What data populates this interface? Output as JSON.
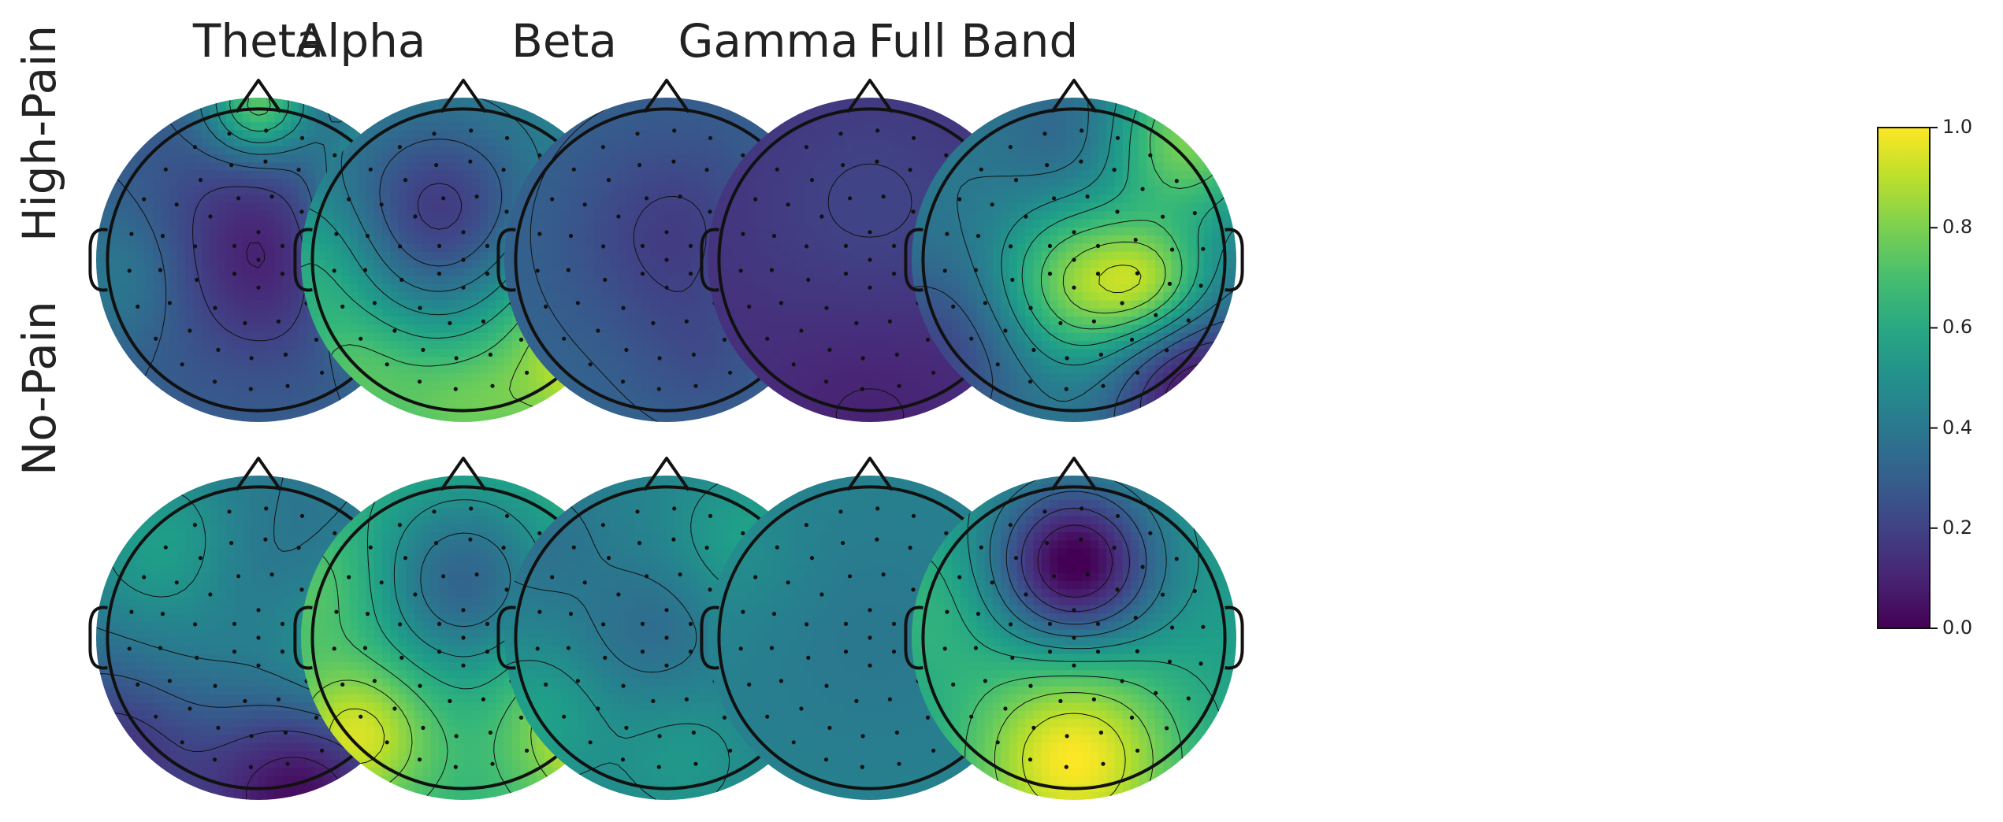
{
  "chart_data": {
    "type": "heatmap",
    "subtype": "eeg-scalp-topomap",
    "columns": [
      "Theta",
      "Alpha",
      "Beta",
      "Gamma",
      "Full Band"
    ],
    "rows": [
      "High-Pain",
      "No-Pain"
    ],
    "colormap": "viridis",
    "colorbar": {
      "range": [
        0.0,
        1.0
      ],
      "ticks": [
        "0.0",
        "0.2",
        "0.4",
        "0.6",
        "0.8",
        "1.0"
      ]
    },
    "maps": [
      [
        {
          "base": 0.3,
          "blobs": [
            [
              0.05,
              -0.05,
              0.45,
              -0.22
            ],
            [
              0.92,
              -0.35,
              0.35,
              0.55
            ],
            [
              0.95,
              0.25,
              0.3,
              0.4
            ],
            [
              0.0,
              -0.95,
              0.22,
              0.45
            ],
            [
              -0.85,
              0.1,
              0.3,
              0.12
            ]
          ]
        },
        {
          "base": 0.45,
          "blobs": [
            [
              -0.15,
              -0.3,
              0.4,
              -0.28
            ],
            [
              0.9,
              0.55,
              0.45,
              0.55
            ],
            [
              -0.7,
              0.7,
              0.35,
              0.25
            ],
            [
              0.0,
              0.95,
              0.35,
              0.25
            ],
            [
              -0.9,
              0.0,
              0.3,
              0.15
            ]
          ]
        },
        {
          "base": 0.32,
          "blobs": [
            [
              0.05,
              -0.15,
              0.45,
              -0.14
            ],
            [
              0.95,
              0.1,
              0.35,
              0.1
            ],
            [
              0.25,
              0.6,
              0.3,
              -0.06
            ]
          ]
        },
        {
          "base": 0.14,
          "blobs": [
            [
              0.0,
              -0.3,
              0.55,
              0.07
            ],
            [
              0.0,
              0.85,
              0.5,
              -0.05
            ]
          ]
        },
        {
          "base": 0.4,
          "blobs": [
            [
              0.05,
              0.15,
              0.35,
              0.42
            ],
            [
              0.5,
              0.15,
              0.25,
              0.3
            ],
            [
              0.75,
              0.8,
              0.35,
              -0.38
            ],
            [
              0.7,
              -0.75,
              0.35,
              0.4
            ],
            [
              -0.85,
              0.6,
              0.4,
              -0.2
            ],
            [
              0.0,
              -0.75,
              0.3,
              -0.1
            ]
          ]
        }
      ],
      [
        {
          "base": 0.4,
          "blobs": [
            [
              0.25,
              0.95,
              0.45,
              -0.38
            ],
            [
              -0.9,
              0.7,
              0.4,
              -0.25
            ],
            [
              0.6,
              0.1,
              0.35,
              0.18
            ],
            [
              -0.6,
              -0.6,
              0.35,
              0.15
            ],
            [
              0.0,
              -0.3,
              0.4,
              -0.1
            ],
            [
              -0.1,
              0.0,
              0.5,
              0.1
            ]
          ]
        },
        {
          "base": 0.65,
          "blobs": [
            [
              0.0,
              -0.35,
              0.4,
              -0.33
            ],
            [
              -0.65,
              0.6,
              0.3,
              0.3
            ],
            [
              0.85,
              0.55,
              0.35,
              0.35
            ],
            [
              -0.85,
              -0.3,
              0.3,
              0.1
            ]
          ]
        },
        {
          "base": 0.45,
          "blobs": [
            [
              -0.1,
              -0.05,
              0.3,
              -0.1
            ],
            [
              0.5,
              -0.6,
              0.3,
              0.12
            ],
            [
              0.1,
              0.75,
              0.3,
              0.08
            ],
            [
              -0.8,
              -0.6,
              0.3,
              -0.08
            ],
            [
              -0.8,
              0.5,
              0.3,
              0.12
            ]
          ]
        },
        {
          "base": 0.45,
          "blobs": [
            [
              0.0,
              0.0,
              0.6,
              -0.05
            ],
            [
              -0.8,
              -0.5,
              0.3,
              0.05
            ]
          ]
        },
        {
          "base": 0.55,
          "blobs": [
            [
              0.0,
              -0.45,
              0.35,
              -0.58
            ],
            [
              0.0,
              0.75,
              0.45,
              0.45
            ],
            [
              -0.9,
              -0.2,
              0.35,
              0.1
            ]
          ]
        }
      ]
    ]
  }
}
